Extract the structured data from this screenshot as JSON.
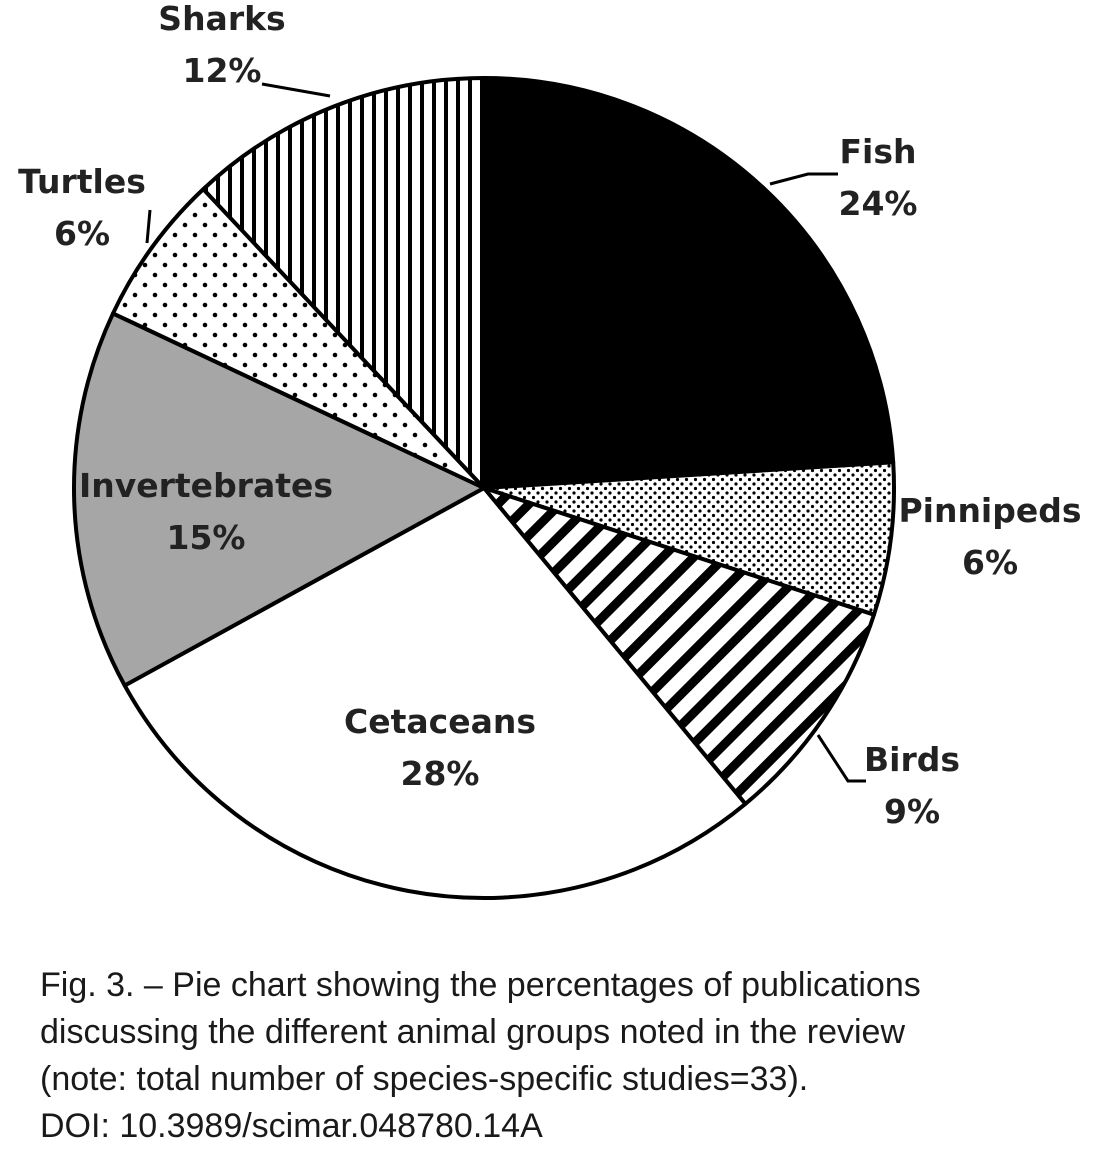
{
  "chart_data": {
    "type": "pie",
    "title": "",
    "start_angle_deg": 0,
    "direction": "clockwise",
    "slices": [
      {
        "name": "Fish",
        "value": 24,
        "label": "24%",
        "fill": "#000000",
        "pattern": "solid"
      },
      {
        "name": "Pinnipeds",
        "value": 6,
        "label": "6%",
        "fill": "#ffffff",
        "pattern": "fine-dots"
      },
      {
        "name": "Birds",
        "value": 9,
        "label": "9%",
        "fill": "#ffffff",
        "pattern": "diagonal-stripes"
      },
      {
        "name": "Cetaceans",
        "value": 28,
        "label": "28%",
        "fill": "#ffffff",
        "pattern": "solid"
      },
      {
        "name": "Invertebrates",
        "value": 15,
        "label": "15%",
        "fill": "#a6a6a6",
        "pattern": "solid"
      },
      {
        "name": "Turtles",
        "value": 6,
        "label": "6%",
        "fill": "#ffffff",
        "pattern": "sparse-dots"
      },
      {
        "name": "Sharks",
        "value": 12,
        "label": "12%",
        "fill": "#ffffff",
        "pattern": "vertical-stripes"
      }
    ]
  },
  "caption": {
    "line1": "Fig. 3. – Pie chart showing the percentages of publications",
    "line2": "discussing the different animal groups noted in the review",
    "line3": "(note: total number of species-specific studies=33).",
    "line4": "DOI: 10.3989/scimar.048780.14A"
  }
}
